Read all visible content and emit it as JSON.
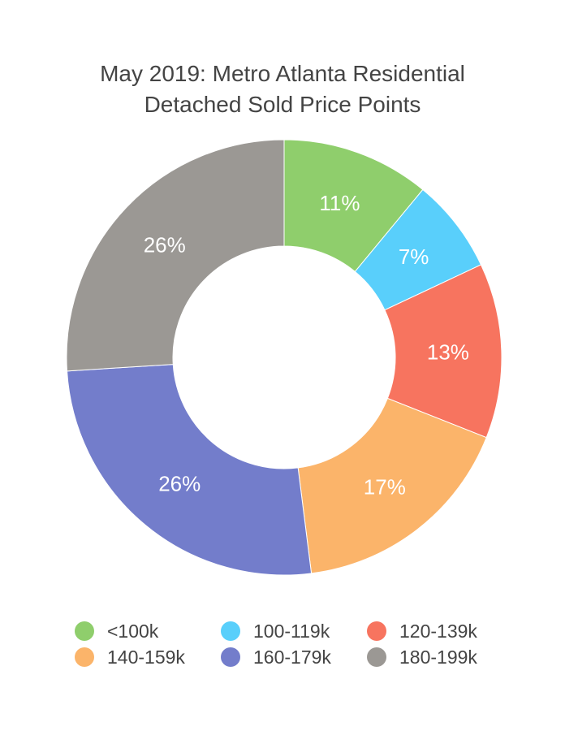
{
  "chart_data": {
    "type": "pie",
    "variant": "donut",
    "title_lines": [
      "May 2019: Metro Atlanta Residential",
      "Detached Sold Price Points"
    ],
    "slices": [
      {
        "label": "<100k",
        "value": 11,
        "display": "11%",
        "color": "#8fce6c"
      },
      {
        "label": "100-119k",
        "value": 7,
        "display": "7%",
        "color": "#59cffb"
      },
      {
        "label": "120-139k",
        "value": 13,
        "display": "13%",
        "color": "#f7745f"
      },
      {
        "label": "140-159k",
        "value": 17,
        "display": "17%",
        "color": "#fbb46a"
      },
      {
        "label": "160-179k",
        "value": 26,
        "display": "26%",
        "color": "#737dcb"
      },
      {
        "label": "180-199k",
        "value": 26,
        "display": "26%",
        "color": "#9b9894"
      }
    ],
    "legend_position": "bottom"
  }
}
